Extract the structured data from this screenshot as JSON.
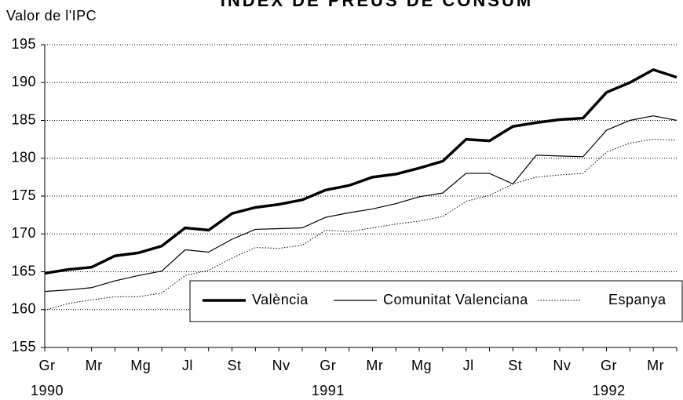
{
  "chart_data": {
    "type": "line",
    "title": "ÍNDEX DE PREUS DE CONSUM",
    "y_label": "Valor de l'IPC",
    "categories": [
      "Gr",
      null,
      "Mr",
      null,
      "Mg",
      null,
      "Jl",
      null,
      "St",
      null,
      "Nv",
      null,
      "Gr",
      null,
      "Mr",
      null,
      "Mg",
      null,
      "Jl",
      null,
      "St",
      null,
      "Nv",
      null,
      "Gr",
      null,
      "Mr",
      null
    ],
    "years": [
      "1990",
      "1991",
      "1992"
    ],
    "ylim": [
      155,
      195
    ],
    "yticks": [
      155,
      160,
      165,
      170,
      175,
      180,
      185,
      190,
      195
    ],
    "grid": true,
    "legend_position": "bottom-right",
    "series": [
      {
        "name": "València",
        "color": "#000000",
        "width": 3.5,
        "dash": "solid",
        "values": [
          164.8,
          165.3,
          165.6,
          167.1,
          167.5,
          168.4,
          170.8,
          170.5,
          172.7,
          173.5,
          173.9,
          174.5,
          175.8,
          176.4,
          177.5,
          177.9,
          178.7,
          179.6,
          182.5,
          182.3,
          184.2,
          184.7,
          185.1,
          185.3,
          188.7,
          190.0,
          191.7,
          190.7
        ]
      },
      {
        "name": "Comunitat Valenciana",
        "color": "#000000",
        "width": 1.2,
        "dash": "solid",
        "values": [
          162.4,
          162.6,
          162.9,
          163.8,
          164.5,
          165.1,
          167.9,
          167.6,
          169.3,
          170.6,
          170.7,
          170.8,
          172.2,
          172.8,
          173.3,
          174.0,
          174.9,
          175.4,
          178.0,
          178.0,
          176.6,
          180.4,
          180.3,
          180.2,
          183.7,
          185.0,
          185.6,
          185.0
        ]
      },
      {
        "name": "Espanya",
        "color": "#000000",
        "width": 1,
        "dash": "dotted",
        "values": [
          159.9,
          160.8,
          161.3,
          161.7,
          161.7,
          162.2,
          164.5,
          165.2,
          166.8,
          168.2,
          168.1,
          168.5,
          170.5,
          170.3,
          170.8,
          171.3,
          171.7,
          172.3,
          174.3,
          175.1,
          176.6,
          177.5,
          177.8,
          178.0,
          180.8,
          182.0,
          182.5,
          182.4
        ]
      }
    ]
  }
}
